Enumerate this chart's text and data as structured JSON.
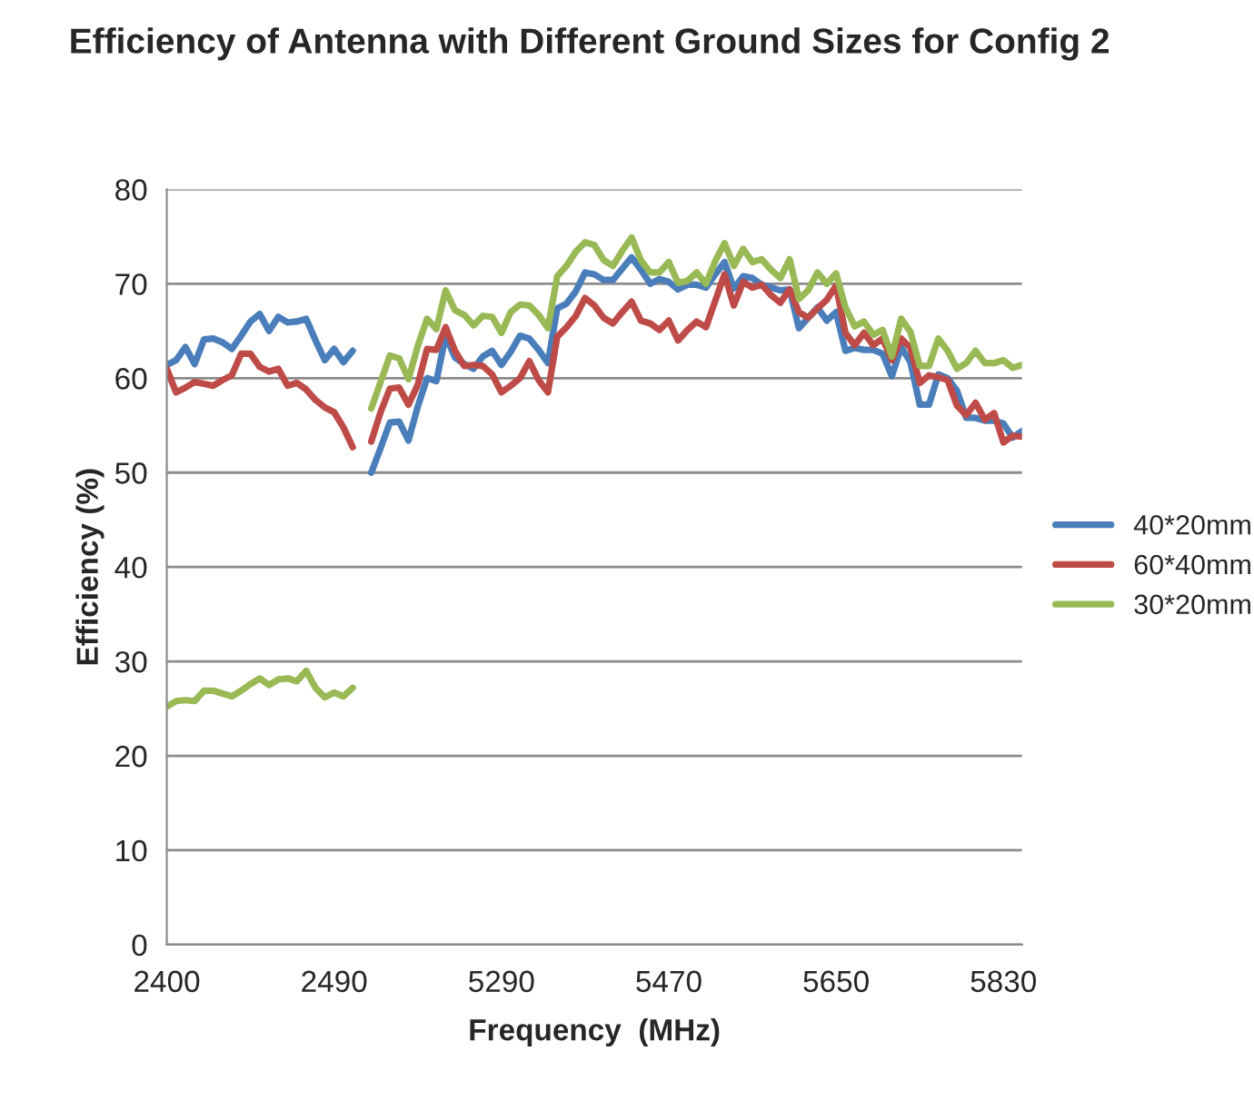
{
  "chart_data": {
    "type": "line",
    "title": "Efficiency of Antenna with Different Ground Sizes for Config 2",
    "xlabel": "Frequency  (MHz)",
    "ylabel": "Efficiency (%)",
    "categories": [
      "2400",
      null,
      null,
      null,
      null,
      null,
      null,
      null,
      null,
      null,
      null,
      null,
      null,
      null,
      null,
      null,
      null,
      null,
      "2490",
      null,
      null,
      null,
      null,
      null,
      null,
      null,
      null,
      null,
      null,
      null,
      null,
      null,
      null,
      null,
      null,
      null,
      "5290",
      null,
      null,
      null,
      null,
      null,
      null,
      null,
      null,
      null,
      null,
      null,
      null,
      null,
      null,
      null,
      null,
      null,
      "5470",
      null,
      null,
      null,
      null,
      null,
      null,
      null,
      null,
      null,
      null,
      null,
      null,
      null,
      null,
      null,
      null,
      null,
      "5650",
      null,
      null,
      null,
      null,
      null,
      null,
      null,
      null,
      null,
      null,
      null,
      null,
      null,
      null,
      null,
      null,
      null,
      "5830",
      null,
      null
    ],
    "series": [
      {
        "name": "40*20mm",
        "color": "#4a7ebb",
        "values": [
          61.4,
          61.9,
          63.3,
          61.5,
          64.1,
          64.2,
          63.8,
          63.1,
          64.5,
          66.0,
          66.8,
          65.0,
          66.5,
          65.9,
          66.0,
          66.3,
          64.0,
          61.9,
          63.1,
          61.7,
          62.9,
          null,
          50.0,
          52.6,
          55.3,
          55.4,
          53.4,
          57.0,
          60.0,
          59.7,
          64.5,
          62.2,
          61.5,
          61.0,
          62.3,
          62.9,
          61.4,
          62.8,
          64.5,
          64.2,
          63.0,
          61.6,
          67.4,
          67.9,
          69.2,
          71.2,
          71.0,
          70.4,
          70.4,
          71.6,
          72.8,
          71.5,
          70.0,
          70.5,
          70.2,
          69.4,
          69.9,
          69.9,
          69.6,
          71.0,
          72.3,
          69.5,
          70.8,
          70.6,
          69.9,
          69.6,
          69.3,
          69.4,
          65.3,
          66.4,
          67.5,
          66.1,
          67.0,
          62.9,
          63.2,
          63.0,
          63.0,
          62.6,
          60.2,
          63.3,
          61.7,
          57.2,
          57.2,
          60.4,
          60.0,
          58.7,
          55.8,
          55.8,
          55.5,
          55.5,
          55.2,
          53.7,
          54.4
        ]
      },
      {
        "name": "60*40mm",
        "color": "#be4b48",
        "values": [
          61.0,
          58.5,
          59.0,
          59.6,
          59.4,
          59.2,
          59.8,
          60.3,
          62.6,
          62.6,
          61.2,
          60.7,
          61.0,
          59.2,
          59.5,
          58.8,
          57.7,
          56.9,
          56.4,
          54.8,
          52.7,
          null,
          53.3,
          56.4,
          58.9,
          59.0,
          57.2,
          59.3,
          63.1,
          63.0,
          65.4,
          62.9,
          61.3,
          61.4,
          61.3,
          60.4,
          58.5,
          59.2,
          60.0,
          61.8,
          59.8,
          58.5,
          64.4,
          65.4,
          66.6,
          68.5,
          67.7,
          66.4,
          65.8,
          67.0,
          68.1,
          66.1,
          65.8,
          65.1,
          66.1,
          64.0,
          65.1,
          66.0,
          65.4,
          68.2,
          71.0,
          67.7,
          70.2,
          69.6,
          69.9,
          68.8,
          68.0,
          69.4,
          67.0,
          66.4,
          67.4,
          68.3,
          69.8,
          64.8,
          63.5,
          64.8,
          63.5,
          64.2,
          61.9,
          64.2,
          63.2,
          59.5,
          60.3,
          60.1,
          59.8,
          57.1,
          56.1,
          57.4,
          55.6,
          56.3,
          53.2,
          53.9,
          53.8
        ]
      },
      {
        "name": "30*20mm",
        "color": "#98b954",
        "values": [
          25.2,
          25.8,
          25.9,
          25.8,
          26.9,
          26.9,
          26.6,
          26.3,
          26.9,
          27.6,
          28.2,
          27.5,
          28.1,
          28.2,
          27.9,
          29.0,
          27.2,
          26.2,
          26.7,
          26.3,
          27.2,
          null,
          56.8,
          59.6,
          62.4,
          62.1,
          59.9,
          63.4,
          66.3,
          65.2,
          69.3,
          67.2,
          66.7,
          65.6,
          66.6,
          66.5,
          64.8,
          67.0,
          67.8,
          67.7,
          66.7,
          65.3,
          70.8,
          71.9,
          73.4,
          74.4,
          74.1,
          72.5,
          71.9,
          73.5,
          74.9,
          72.5,
          71.2,
          71.2,
          72.3,
          70.1,
          70.3,
          71.2,
          70.0,
          72.4,
          74.3,
          71.9,
          73.7,
          72.3,
          72.6,
          71.5,
          70.6,
          72.6,
          68.4,
          69.3,
          71.2,
          70.0,
          71.1,
          67.5,
          65.5,
          66.0,
          64.6,
          65.1,
          62.3,
          66.3,
          64.9,
          61.3,
          61.3,
          64.2,
          62.9,
          61.0,
          61.6,
          62.9,
          61.6,
          61.6,
          61.9,
          61.1,
          61.4
        ]
      }
    ],
    "ylim": [
      0,
      80
    ],
    "yticks": [
      0,
      10,
      20,
      30,
      40,
      50,
      60,
      70,
      80
    ],
    "grid": "y",
    "legend": "right",
    "marker": "none",
    "line_style": "solid"
  }
}
